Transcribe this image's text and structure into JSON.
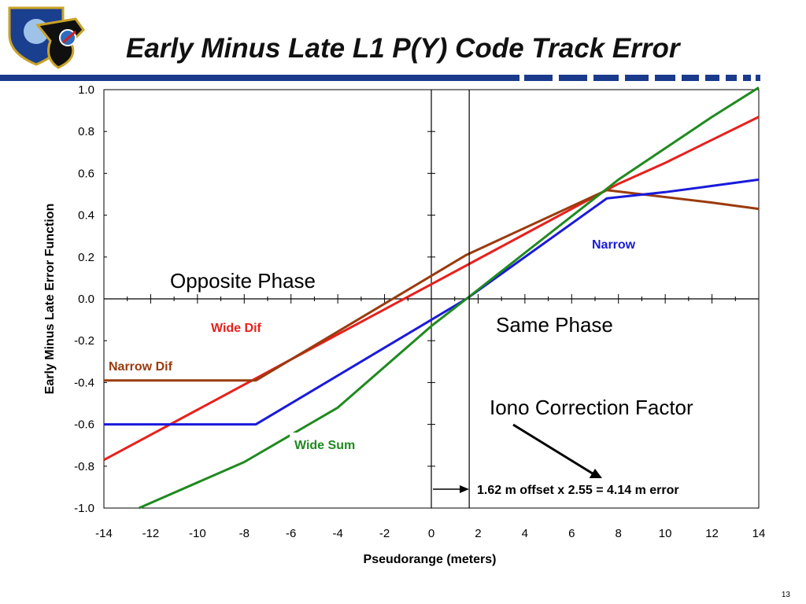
{
  "slide": {
    "title": "Early Minus Late L1 P(Y) Code Track Error",
    "page_number": "13"
  },
  "header_band": {
    "color": "#1a3a8c"
  },
  "logo": {
    "icon": "air-force-space-command-seal-icon"
  },
  "chart_data": {
    "type": "line",
    "title": "",
    "xlabel": "Pseudorange (meters)",
    "ylabel": "Early Minus Late Error Function",
    "xlim": [
      -14,
      14
    ],
    "ylim": [
      -1.0,
      1.0
    ],
    "xticks": [
      -14,
      -12,
      -10,
      -8,
      -6,
      -4,
      -2,
      0,
      2,
      4,
      6,
      8,
      10,
      12,
      14
    ],
    "xtick_labels": [
      "-14",
      "-12",
      "-10",
      "-8",
      "-6",
      "-4",
      "-2",
      "0",
      "2",
      "4",
      "6",
      "8",
      "10",
      "12",
      "14"
    ],
    "yticks": [
      1.0,
      0.8,
      0.6,
      0.4,
      0.2,
      0.0,
      -0.2,
      -0.4,
      -0.6,
      -0.8,
      -1.0
    ],
    "ytick_labels": [
      "1.0",
      "0.8",
      "0.6",
      "0.4",
      "0.2",
      "0.0",
      "-0.2",
      "-0.4",
      "-0.6",
      "-0.8",
      "-1.0"
    ],
    "grid": false,
    "series": [
      {
        "name": "Wide Dif",
        "color": "#e8201c",
        "x": [
          -14,
          -12,
          -10,
          -8,
          -6,
          -4,
          -2,
          0,
          2,
          4,
          6,
          8,
          10,
          12,
          14
        ],
        "y": [
          -0.77,
          -0.65,
          -0.53,
          -0.41,
          -0.29,
          -0.17,
          -0.05,
          0.07,
          0.19,
          0.31,
          0.43,
          0.55,
          0.65,
          0.76,
          0.87
        ]
      },
      {
        "name": "Narrow Dif",
        "color": "#9a3b0e",
        "x": [
          -14,
          -7.5,
          1.5,
          7.5,
          12,
          14
        ],
        "y": [
          -0.39,
          -0.39,
          0.21,
          0.52,
          0.46,
          0.43
        ]
      },
      {
        "name": "Narrow",
        "color": "#1a1adb",
        "x": [
          -14,
          -7.5,
          1.5,
          7.5,
          10,
          12,
          14
        ],
        "y": [
          -0.6,
          -0.6,
          0.0,
          0.48,
          0.51,
          0.54,
          0.57
        ]
      },
      {
        "name": "Wide Sum",
        "color": "#1f8a1f",
        "x": [
          -12.5,
          -8,
          -4,
          0,
          1.5,
          4,
          8,
          12,
          14
        ],
        "y": [
          -1.0,
          -0.78,
          -0.52,
          -0.13,
          0.0,
          0.22,
          0.57,
          0.87,
          1.01
        ]
      }
    ],
    "marker_line": {
      "x": 1.62
    },
    "annotations": {
      "opposite_phase": "Opposite Phase",
      "same_phase": "Same Phase",
      "iono": "Iono Correction Factor",
      "offset": "1.62 m offset x 2.55 = 4.14 m error"
    }
  }
}
